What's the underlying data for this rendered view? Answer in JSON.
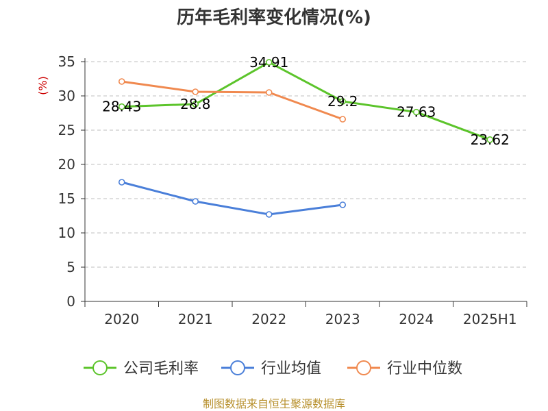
{
  "chart_data": {
    "type": "line",
    "title": "历年毛利率变化情况(%)",
    "ylabel": "(%)",
    "categories": [
      "2020",
      "2021",
      "2022",
      "2023",
      "2024",
      "2025H1"
    ],
    "ylim": [
      0,
      35
    ],
    "yticks": [
      0,
      5,
      10,
      15,
      20,
      25,
      30,
      35
    ],
    "grid": true,
    "legend_position": "bottom",
    "series": [
      {
        "name": "公司毛利率",
        "color": "#5cc42b",
        "values": [
          28.43,
          28.8,
          34.91,
          29.2,
          27.63,
          23.62
        ],
        "data_labels": [
          "28.43",
          "28.8",
          "34.91",
          "29.2",
          "27.63",
          "23.62"
        ]
      },
      {
        "name": "行业均值",
        "color": "#4a7fd9",
        "values": [
          17.4,
          14.6,
          12.7,
          14.1,
          null,
          null
        ]
      },
      {
        "name": "行业中位数",
        "color": "#f0894f",
        "values": [
          32.1,
          30.6,
          30.5,
          26.6,
          null,
          null
        ]
      }
    ]
  },
  "source": "制图数据来自恒生聚源数据库"
}
